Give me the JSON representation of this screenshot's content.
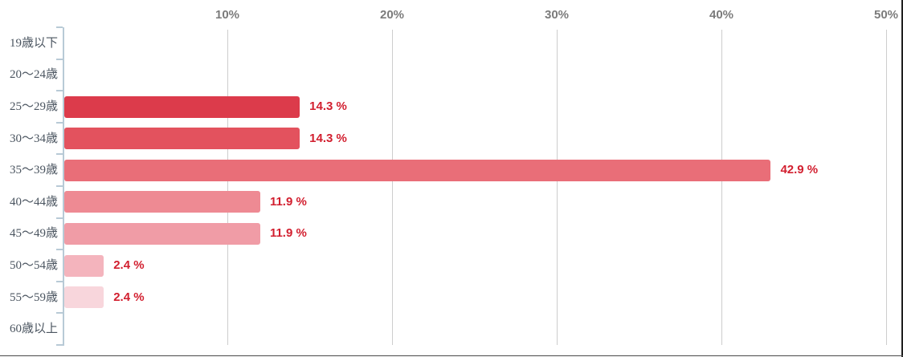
{
  "chart_data": {
    "type": "bar",
    "orientation": "horizontal",
    "title": "",
    "xlabel": "",
    "ylabel": "",
    "categories": [
      "19歳以下",
      "20〜24歳",
      "25〜29歳",
      "30〜34歳",
      "35〜39歳",
      "40〜44歳",
      "45〜49歳",
      "50〜54歳",
      "55〜59歳",
      "60歳以上"
    ],
    "values": [
      0,
      0,
      14.3,
      14.3,
      42.9,
      11.9,
      11.9,
      2.4,
      2.4,
      0
    ],
    "value_labels": [
      "",
      "",
      "14.3 %",
      "14.3 %",
      "42.9 %",
      "11.9 %",
      "11.9 %",
      "2.4 %",
      "2.4 %",
      ""
    ],
    "bar_colors": [
      null,
      null,
      "#dc3b4b",
      "#e3525e",
      "#e96e78",
      "#ee8a93",
      "#f09ca6",
      "#f4b4bd",
      "#f8d6dc",
      null
    ],
    "x_ticks": [
      "10%",
      "20%",
      "30%",
      "40%",
      "50%"
    ],
    "x_tick_values": [
      10,
      20,
      30,
      40,
      50
    ],
    "xlim": [
      0,
      50
    ],
    "grid": true,
    "legend": null,
    "colors": {
      "value_label": "#d21f2f",
      "axis": "#b8cad6",
      "gridline": "#cdcdcd",
      "x_tick_label": "#7b7b7b",
      "category_label": "#4b5560",
      "background": "#ffffff"
    }
  }
}
